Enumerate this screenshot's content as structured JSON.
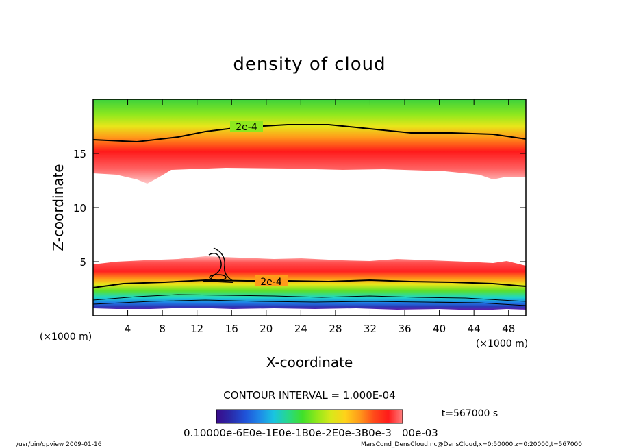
{
  "chart_data": {
    "type": "heatmap",
    "title": "density of cloud",
    "xlabel": "X-coordinate",
    "ylabel": "Z-coordinate",
    "x_unit": "(×1000 m)",
    "y_unit": "(×1000 m)",
    "xlim": [
      0,
      50
    ],
    "ylim": [
      0,
      20
    ],
    "x_ticks": [
      "4",
      "8",
      "12",
      "16",
      "20",
      "24",
      "28",
      "32",
      "36",
      "40",
      "44",
      "48"
    ],
    "x_tick_values": [
      4,
      8,
      12,
      16,
      20,
      24,
      28,
      32,
      36,
      40,
      44,
      48
    ],
    "y_ticks": [
      "5",
      "10",
      "15"
    ],
    "y_tick_values": [
      5,
      10,
      15
    ],
    "contour_labels": [
      {
        "text": "2e-4",
        "x": 19.5,
        "z": 17.5
      },
      {
        "text": "2e-4",
        "x": 20.5,
        "z": 3.3
      }
    ],
    "contour_interval_text": "CONTOUR INTERVAL = 1.000E-04",
    "time_text": "t=567000 s",
    "colorbar_labels_text": "0.10000e-6E0e-1E0e-1B0e-2E0e-3B0e-3",
    "colorbar_exponent_text": "00e-03",
    "colorbar_colors": [
      "#3a0a8a",
      "#2a2aa8",
      "#1f52d8",
      "#1e88e8",
      "#19c4e0",
      "#27d88a",
      "#3fe02a",
      "#8fe81a",
      "#d8e81a",
      "#ffd21a",
      "#ff9a1a",
      "#ff4a1a",
      "#ff1a1a",
      "#ff8080"
    ]
  },
  "footer": {
    "left": "/usr/bin/gpview   2009-01-16",
    "right": "MarsCond_DensCloud.nc@DensCloud,x=0:50000,z=0:20000,t=567000"
  }
}
